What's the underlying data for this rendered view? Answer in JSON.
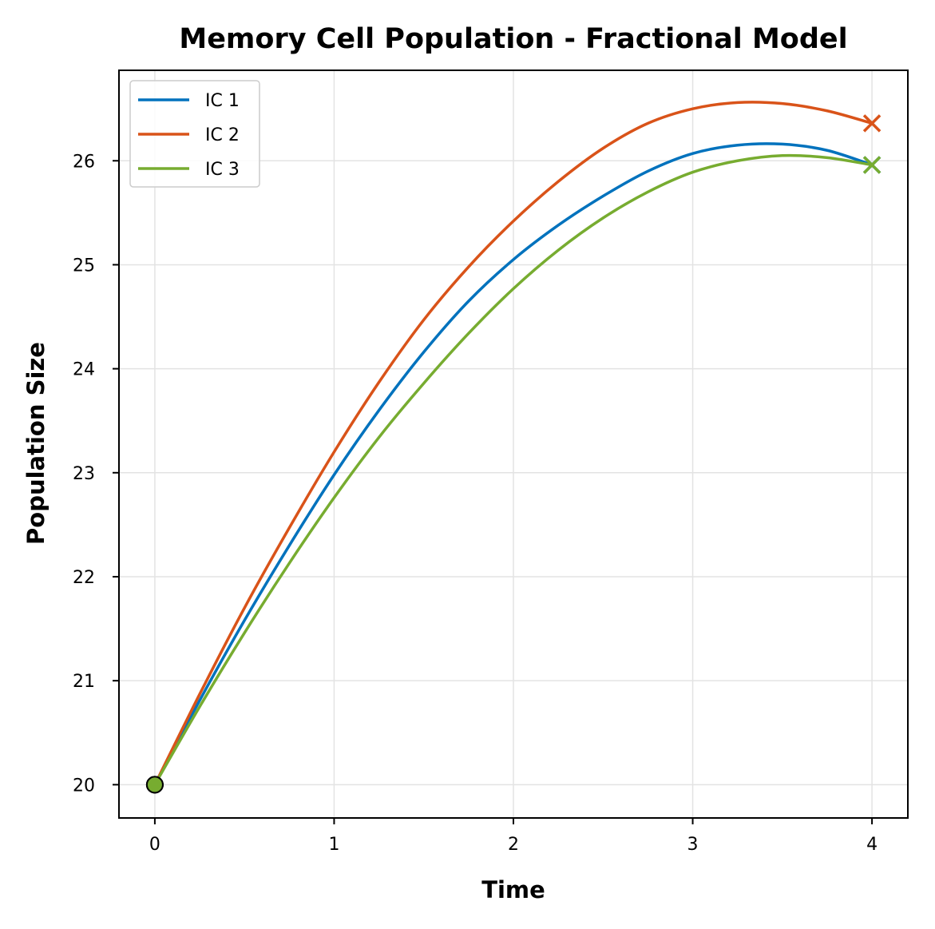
{
  "chart_data": {
    "type": "line",
    "title": "Memory Cell Population - Fractional Model",
    "xlabel": "Time",
    "ylabel": "Population Size",
    "xlim": [
      -0.2,
      4.2
    ],
    "ylim": [
      19.68,
      26.87
    ],
    "xticks": [
      0,
      1,
      2,
      3,
      4
    ],
    "yticks": [
      20,
      21,
      22,
      23,
      24,
      25,
      26
    ],
    "grid": true,
    "legend_position": "top-left",
    "start_marker": "circle",
    "end_marker": "x",
    "series": [
      {
        "name": "IC 1",
        "color": "#0072BD",
        "x": [
          0,
          0.25,
          0.5,
          0.75,
          1.0,
          1.25,
          1.5,
          1.75,
          2.0,
          2.25,
          2.5,
          2.75,
          3.0,
          3.25,
          3.5,
          3.75,
          4.0
        ],
        "y": [
          20.0,
          20.81,
          21.58,
          22.3,
          22.98,
          23.6,
          24.16,
          24.65,
          25.05,
          25.38,
          25.66,
          25.9,
          26.07,
          26.15,
          26.16,
          26.1,
          25.96
        ]
      },
      {
        "name": "IC 2",
        "color": "#D95319",
        "x": [
          0,
          0.25,
          0.5,
          0.75,
          1.0,
          1.25,
          1.5,
          1.75,
          2.0,
          2.25,
          2.5,
          2.75,
          3.0,
          3.25,
          3.5,
          3.75,
          4.0
        ],
        "y": [
          20.0,
          20.87,
          21.7,
          22.47,
          23.2,
          23.87,
          24.47,
          24.98,
          25.42,
          25.8,
          26.12,
          26.36,
          26.5,
          26.56,
          26.55,
          26.48,
          26.36
        ]
      },
      {
        "name": "IC 3",
        "color": "#77AC30",
        "x": [
          0,
          0.25,
          0.5,
          0.75,
          1.0,
          1.25,
          1.5,
          1.75,
          2.0,
          2.25,
          2.5,
          2.75,
          3.0,
          3.25,
          3.5,
          3.75,
          4.0
        ],
        "y": [
          20.0,
          20.75,
          21.46,
          22.13,
          22.76,
          23.34,
          23.86,
          24.34,
          24.77,
          25.14,
          25.45,
          25.7,
          25.89,
          26.0,
          26.05,
          26.03,
          25.96
        ]
      }
    ]
  }
}
